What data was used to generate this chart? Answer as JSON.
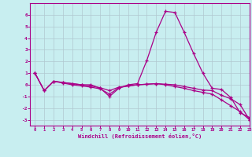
{
  "xlabel": "Windchill (Refroidissement éolien,°C)",
  "xlim": [
    -0.5,
    23
  ],
  "ylim": [
    -3.5,
    7
  ],
  "xticks": [
    0,
    1,
    2,
    3,
    4,
    5,
    6,
    7,
    8,
    9,
    10,
    11,
    12,
    13,
    14,
    15,
    16,
    17,
    18,
    19,
    20,
    21,
    22,
    23
  ],
  "yticks": [
    -3,
    -2,
    -1,
    0,
    1,
    2,
    3,
    4,
    5,
    6
  ],
  "background_color": "#c8eef0",
  "line_color": "#aa0088",
  "grid_color": "#b0c8d0",
  "series1_x": [
    0,
    1,
    2,
    3,
    4,
    5,
    6,
    7,
    8,
    9,
    10,
    11,
    12,
    13,
    14,
    15,
    16,
    17,
    18,
    19,
    20,
    21,
    22,
    23
  ],
  "series1_y": [
    1.0,
    -0.5,
    0.3,
    0.2,
    0.1,
    0.0,
    0.0,
    -0.3,
    -1.0,
    -0.3,
    0.0,
    0.1,
    2.1,
    4.5,
    6.3,
    6.2,
    4.5,
    2.7,
    1.0,
    -0.3,
    -0.4,
    -1.1,
    -2.4,
    -2.8
  ],
  "series2_x": [
    0,
    1,
    2,
    3,
    4,
    5,
    6,
    7,
    8,
    9,
    10,
    11,
    12,
    13,
    14,
    15,
    16,
    17,
    18,
    19,
    20,
    21,
    22,
    23
  ],
  "series2_y": [
    1.0,
    -0.5,
    0.3,
    0.2,
    0.1,
    0.0,
    -0.1,
    -0.25,
    -0.5,
    -0.2,
    -0.1,
    0.0,
    0.05,
    0.1,
    0.05,
    0.0,
    -0.15,
    -0.3,
    -0.45,
    -0.5,
    -0.9,
    -1.2,
    -1.7,
    -3.0
  ],
  "series3_x": [
    0,
    1,
    2,
    3,
    4,
    5,
    6,
    7,
    8,
    9,
    10,
    11,
    12,
    13,
    14,
    15,
    16,
    17,
    18,
    19,
    20,
    21,
    22,
    23
  ],
  "series3_y": [
    1.0,
    -0.5,
    0.3,
    0.15,
    0.0,
    -0.1,
    -0.2,
    -0.35,
    -0.8,
    -0.25,
    -0.1,
    0.0,
    0.05,
    0.1,
    0.0,
    -0.15,
    -0.3,
    -0.5,
    -0.65,
    -0.8,
    -1.3,
    -1.8,
    -2.3,
    -3.0
  ]
}
